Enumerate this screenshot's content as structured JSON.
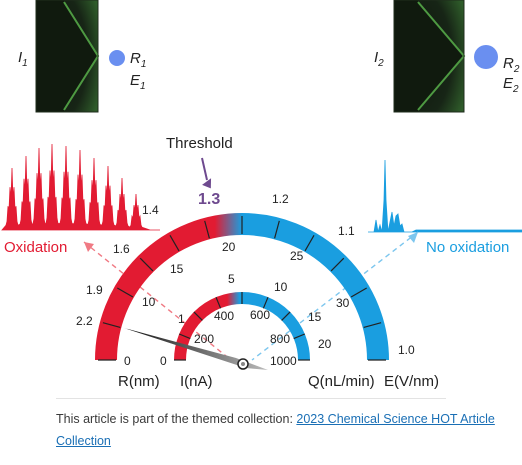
{
  "panels": {
    "left": {
      "current": "I",
      "current_sub": "1",
      "radius": "R",
      "radius_sub": "1",
      "field": "E",
      "field_sub": "1"
    },
    "right": {
      "current": "I",
      "current_sub": "2",
      "radius": "R",
      "radius_sub": "2",
      "field": "E",
      "field_sub": "2"
    }
  },
  "labels": {
    "oxidation": "Oxidation",
    "no_oxidation": "No oxidation",
    "threshold": "Threshold",
    "threshold_value": "1.3"
  },
  "scales": {
    "outer_left": [
      "1.4",
      "1.6",
      "1.9",
      "2.2",
      "0"
    ],
    "outer_right": [
      "1.2",
      "1.1",
      "1.0"
    ],
    "middle": [
      "20",
      "15",
      "10",
      "5",
      "0",
      "25",
      "30"
    ],
    "inner_mid": [
      "5",
      "10",
      "15",
      "20"
    ],
    "inner": [
      "1",
      "0",
      "400",
      "200",
      "600",
      "800",
      "1000"
    ]
  },
  "axis_labels": {
    "r": "R(nm)",
    "i": "I(nA)",
    "q": "Q(nL/min)",
    "e": "E(V/nm)"
  },
  "colors": {
    "red": "#e21b32",
    "blue": "#1a9ee0",
    "purple": "#6e4a8f"
  },
  "caption": {
    "text": "This article is part of the themed collection: ",
    "link_text": "2023 Chemical Science HOT Article Collection"
  }
}
